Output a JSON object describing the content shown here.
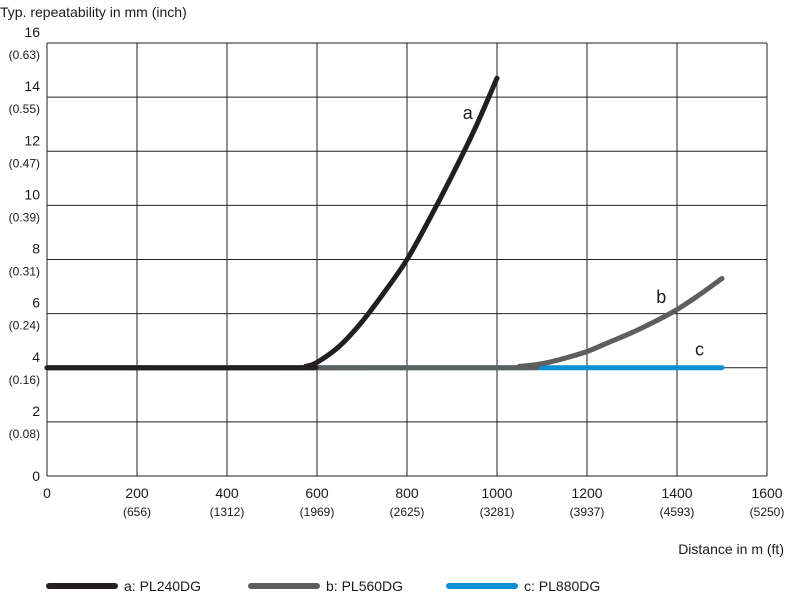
{
  "chart_data": {
    "type": "line",
    "ylabel": "Typ. repeatability in mm (inch)",
    "xlabel": "Distance in m (ft)",
    "xlim": [
      0,
      1600
    ],
    "ylim": [
      0,
      16
    ],
    "grid": true,
    "x_ticks": [
      {
        "value": 0,
        "label": "0",
        "sub": ""
      },
      {
        "value": 200,
        "label": "200",
        "sub": "(656)"
      },
      {
        "value": 400,
        "label": "400",
        "sub": "(1312)"
      },
      {
        "value": 600,
        "label": "600",
        "sub": "(1969)"
      },
      {
        "value": 800,
        "label": "800",
        "sub": "(2625)"
      },
      {
        "value": 1000,
        "label": "1000",
        "sub": "(3281)"
      },
      {
        "value": 1200,
        "label": "1200",
        "sub": "(3937)"
      },
      {
        "value": 1400,
        "label": "1400",
        "sub": "(4593)"
      },
      {
        "value": 1600,
        "label": "1600",
        "sub": "(5250)"
      }
    ],
    "y_ticks": [
      {
        "value": 0,
        "label": "0",
        "sub": ""
      },
      {
        "value": 2,
        "label": "2",
        "sub": "(0.08)"
      },
      {
        "value": 4,
        "label": "4",
        "sub": "(0.16)"
      },
      {
        "value": 6,
        "label": "6",
        "sub": "(0.24)"
      },
      {
        "value": 8,
        "label": "8",
        "sub": "(0.31)"
      },
      {
        "value": 10,
        "label": "10",
        "sub": "(0.39)"
      },
      {
        "value": 12,
        "label": "12",
        "sub": "(0.47)"
      },
      {
        "value": 14,
        "label": "14",
        "sub": "(0.55)"
      },
      {
        "value": 16,
        "label": "16",
        "sub": "(0.63)"
      }
    ],
    "legend_placement": "bottom",
    "series": [
      {
        "name": "a: PL240DG",
        "curve_label": "a",
        "color": "#231f20",
        "label_at": [
          935,
          13.2
        ],
        "x": [
          0,
          550,
          575,
          600,
          650,
          700,
          750,
          800,
          850,
          900,
          950,
          1000
        ],
        "y": [
          4,
          4,
          4.05,
          4.2,
          4.8,
          5.7,
          6.8,
          8.0,
          9.5,
          11.1,
          12.8,
          14.7
        ]
      },
      {
        "name": "b: PL560DG",
        "curve_label": "b",
        "color": "#5e5e5e",
        "label_at": [
          1365,
          6.4
        ],
        "x": [
          0,
          1000,
          1050,
          1100,
          1150,
          1200,
          1250,
          1300,
          1350,
          1400,
          1450,
          1500
        ],
        "y": [
          4,
          4,
          4.05,
          4.15,
          4.35,
          4.6,
          4.95,
          5.3,
          5.7,
          6.15,
          6.7,
          7.3
        ]
      },
      {
        "name": "c: PL880DG",
        "curve_label": "c",
        "color": "#0a8fd0",
        "label_at": [
          1450,
          4.45
        ],
        "x": [
          0,
          1500
        ],
        "y": [
          4,
          4
        ]
      }
    ]
  }
}
